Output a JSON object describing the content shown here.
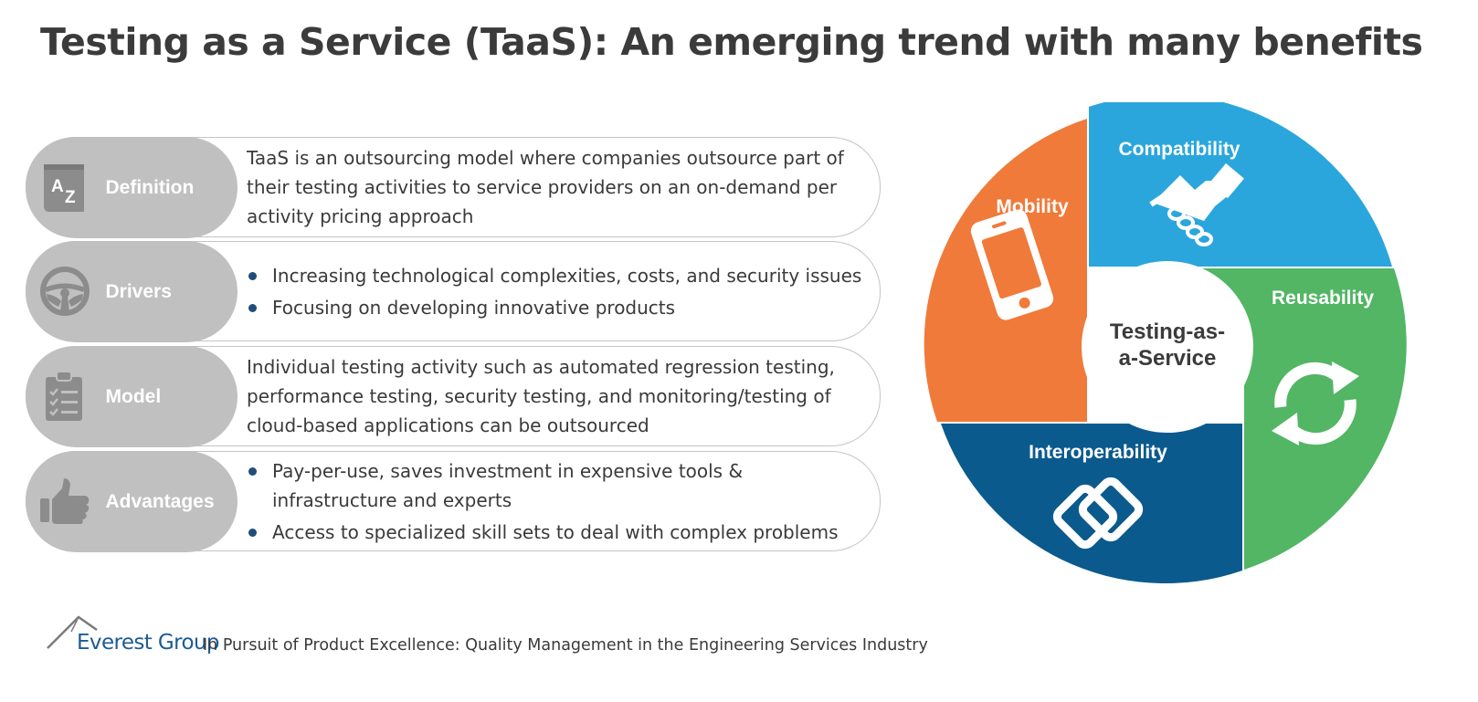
{
  "title": "Testing as a Service (TaaS): An emerging trend with many benefits",
  "rows": [
    {
      "label": "Definition",
      "icon": "a-to-z-icon",
      "text": "TaaS is an outsourcing model where companies outsource part of their testing activities to service providers on an on-demand per activity pricing approach"
    },
    {
      "label": "Drivers",
      "icon": "steering-wheel-icon",
      "bullets": [
        "Increasing technological complexities, costs, and security issues",
        "Focusing on developing innovative products"
      ]
    },
    {
      "label": "Model",
      "icon": "clipboard-checklist-icon",
      "text": "Individual testing activity such as automated regression testing, performance testing, security testing, and monitoring/testing of cloud-based applications can be outsourced"
    },
    {
      "label": "Advantages",
      "icon": "thumbs-up-icon",
      "bullets": [
        "Pay-per-use, saves investment in expensive tools & infrastructure and experts",
        "Access to specialized skill sets to deal with complex problems"
      ]
    }
  ],
  "wheel": {
    "center": "Testing-as-a-Service",
    "center_lines": [
      "Testing-as-",
      "a-Service"
    ],
    "segments": [
      {
        "label": "Mobility",
        "icon": "smartphone-icon",
        "color": "#f07a3a"
      },
      {
        "label": "Compatibility",
        "icon": "handshake-icon",
        "color": "#2aa6dd"
      },
      {
        "label": "Reusability",
        "icon": "refresh-cycle-icon",
        "color": "#52b664"
      },
      {
        "label": "Interoperability",
        "icon": "interlinked-chain-icon",
        "color": "#0b5a8e"
      }
    ]
  },
  "footer": {
    "brand": "Everest Group",
    "caption": "In Pursuit of Product Excellence: Quality Management in the Engineering Services Industry"
  },
  "colors": {
    "tag_gray": "#c0c0c0",
    "bullet": "#1f4e79",
    "brand_blue": "#1d5b94"
  }
}
